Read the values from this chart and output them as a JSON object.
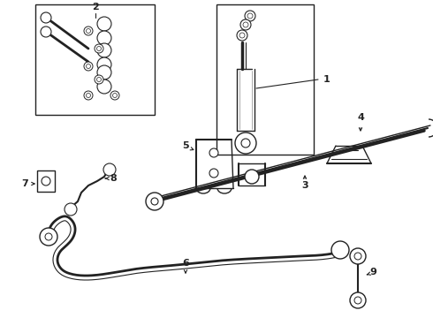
{
  "bg_color": "#ffffff",
  "line_color": "#222222",
  "lw": 1.0,
  "label_fontsize": 8,
  "figsize": [
    4.9,
    3.6
  ],
  "dpi": 100,
  "xlim": [
    0,
    490
  ],
  "ylim": [
    0,
    360
  ]
}
